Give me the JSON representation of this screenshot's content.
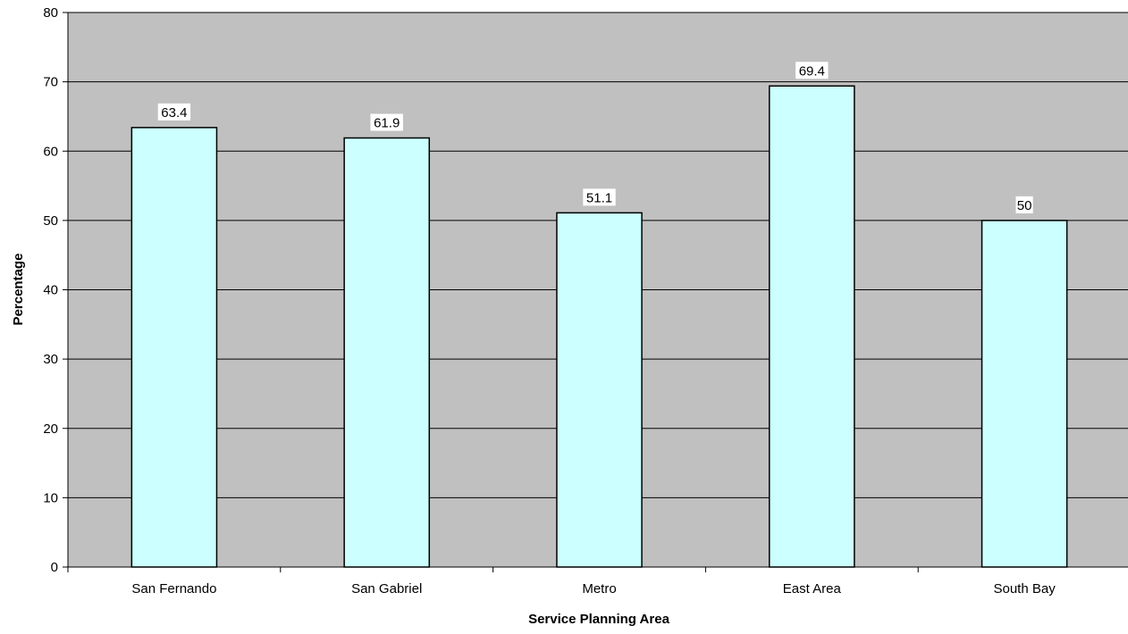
{
  "chart_data": {
    "type": "bar",
    "title": "",
    "xlabel": "Service Planning Area",
    "ylabel": "Percentage",
    "categories": [
      "San Fernando",
      "San Gabriel",
      "Metro",
      "East Area",
      "South Bay"
    ],
    "values": [
      63.4,
      61.9,
      51.1,
      69.4,
      50
    ],
    "data_labels": [
      "63.4",
      "61.9",
      "51.1",
      "69.4",
      "50"
    ],
    "ylim": [
      0,
      80
    ],
    "yticks": [
      0,
      10,
      20,
      30,
      40,
      50,
      60,
      70,
      80
    ],
    "grid": true,
    "legend": "none"
  },
  "colors": {
    "plot_background": "#c0c0c0",
    "bar_fill": "#ccffff",
    "bar_stroke": "#000000",
    "gridline": "#000000",
    "data_label_background": "#ffffff"
  }
}
